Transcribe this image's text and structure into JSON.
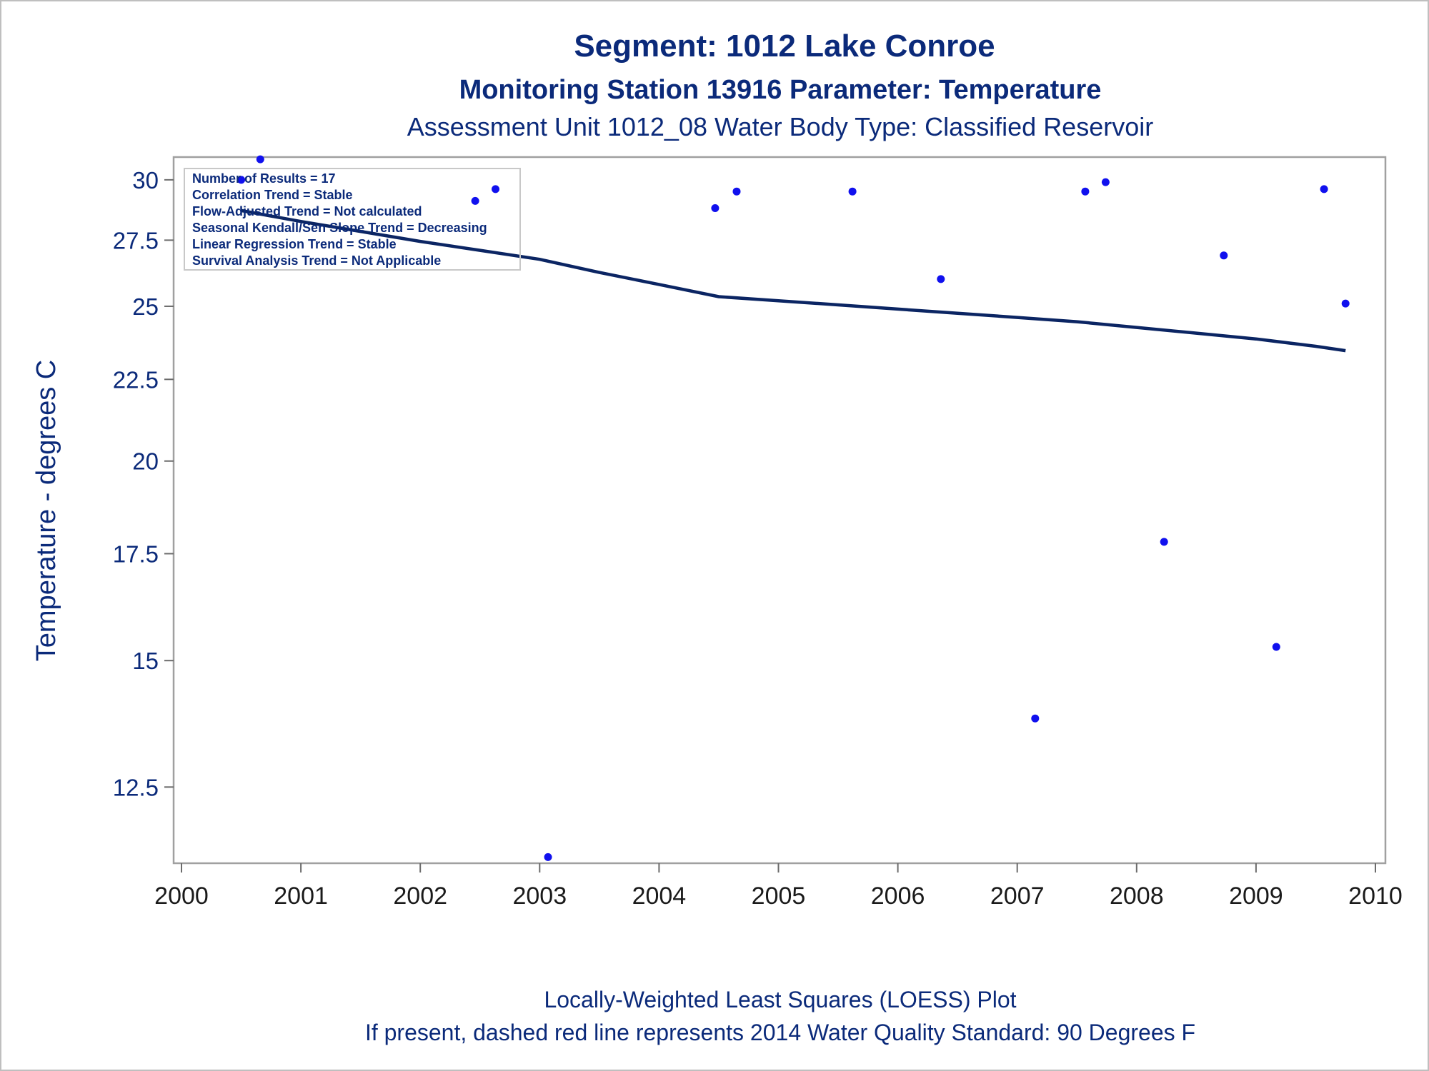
{
  "chart_data": {
    "type": "scatter",
    "title": "Segment: 1012  Lake Conroe",
    "subtitle_1": "Monitoring Station 13916 Parameter: Temperature",
    "subtitle_2": "Assessment Unit 1012_08   Water Body Type: Classified Reservoir",
    "ylabel": "Temperature - degrees C",
    "xlabel": "",
    "xlim": [
      2000,
      2010
    ],
    "ylim": [
      11.2,
      31.0
    ],
    "y_scale": "log",
    "x_ticks": [
      2000,
      2001,
      2002,
      2003,
      2004,
      2005,
      2006,
      2007,
      2008,
      2009,
      2010
    ],
    "y_ticks": [
      12.5,
      15,
      17.5,
      20,
      22.5,
      25,
      27.5,
      30
    ],
    "x_tick_labels": [
      "2000",
      "2001",
      "2002",
      "2003",
      "2004",
      "2005",
      "2006",
      "2007",
      "2008",
      "2009",
      "2010"
    ],
    "y_tick_labels": [
      "12.5",
      "15",
      "17.5",
      "20",
      "22.5",
      "25",
      "27.5",
      "30"
    ],
    "grid": false,
    "points": [
      {
        "x": 2000.5,
        "y": 30.0
      },
      {
        "x": 2000.66,
        "y": 30.9
      },
      {
        "x": 2002.46,
        "y": 29.1
      },
      {
        "x": 2002.63,
        "y": 29.6
      },
      {
        "x": 2003.07,
        "y": 11.3
      },
      {
        "x": 2004.47,
        "y": 28.8
      },
      {
        "x": 2004.65,
        "y": 29.5
      },
      {
        "x": 2005.62,
        "y": 29.5
      },
      {
        "x": 2006.36,
        "y": 26.0
      },
      {
        "x": 2007.15,
        "y": 13.8
      },
      {
        "x": 2007.57,
        "y": 29.5
      },
      {
        "x": 2007.74,
        "y": 29.9
      },
      {
        "x": 2008.23,
        "y": 17.8
      },
      {
        "x": 2008.73,
        "y": 26.9
      },
      {
        "x": 2009.17,
        "y": 15.3
      },
      {
        "x": 2009.57,
        "y": 29.6
      },
      {
        "x": 2009.75,
        "y": 25.1
      }
    ],
    "loess_line": {
      "x": [
        2000.5,
        2001.0,
        2001.5,
        2002.0,
        2002.5,
        2003.0,
        2003.5,
        2004.0,
        2004.5,
        2005.0,
        2005.5,
        2006.0,
        2006.5,
        2007.0,
        2007.5,
        2008.0,
        2008.5,
        2009.0,
        2009.5,
        2009.75
      ],
      "y": [
        28.7,
        28.25,
        27.85,
        27.45,
        27.1,
        26.75,
        26.25,
        25.8,
        25.35,
        25.2,
        25.05,
        24.9,
        24.75,
        24.6,
        24.45,
        24.25,
        24.05,
        23.85,
        23.6,
        23.45
      ]
    },
    "line_color": "#0b2563",
    "marker_color": "#1010ee",
    "stats_box": [
      "Number of Results = 17",
      "Correlation Trend = Stable",
      "Flow-Adjusted Trend = Not calculated",
      "Seasonal Kendall/Sen Slope Trend = Decreasing",
      "Linear Regression Trend = Stable",
      "Survival Analysis Trend = Not Applicable"
    ],
    "stats_box_placement": "top-left",
    "footnotes": [
      "Locally-Weighted Least Squares (LOESS) Plot",
      "If present, dashed red line represents 2014 Water Quality Standard: 90   Degrees F"
    ]
  }
}
